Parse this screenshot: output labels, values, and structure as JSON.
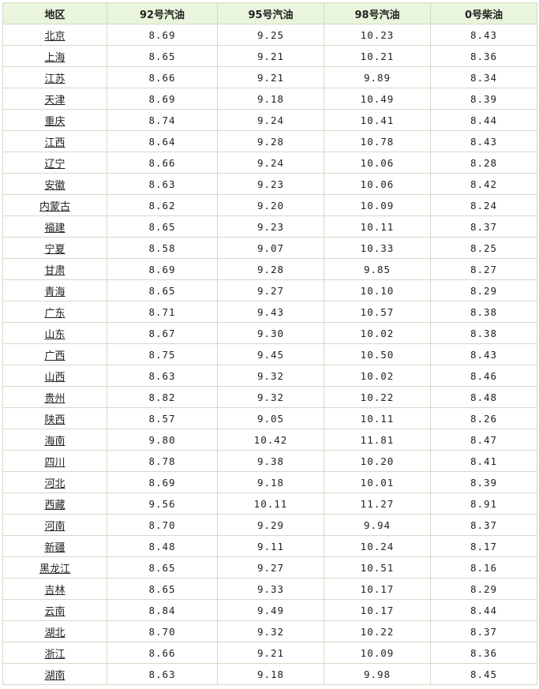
{
  "table": {
    "header": [
      "地区",
      "92号汽油",
      "95号汽油",
      "98号汽油",
      "0号柴油"
    ],
    "rows": [
      [
        "北京",
        "8.69",
        "9.25",
        "10.23",
        "8.43"
      ],
      [
        "上海",
        "8.65",
        "9.21",
        "10.21",
        "8.36"
      ],
      [
        "江苏",
        "8.66",
        "9.21",
        "9.89",
        "8.34"
      ],
      [
        "天津",
        "8.69",
        "9.18",
        "10.49",
        "8.39"
      ],
      [
        "重庆",
        "8.74",
        "9.24",
        "10.41",
        "8.44"
      ],
      [
        "江西",
        "8.64",
        "9.28",
        "10.78",
        "8.43"
      ],
      [
        "辽宁",
        "8.66",
        "9.24",
        "10.06",
        "8.28"
      ],
      [
        "安徽",
        "8.63",
        "9.23",
        "10.06",
        "8.42"
      ],
      [
        "内蒙古",
        "8.62",
        "9.20",
        "10.09",
        "8.24"
      ],
      [
        "福建",
        "8.65",
        "9.23",
        "10.11",
        "8.37"
      ],
      [
        "宁夏",
        "8.58",
        "9.07",
        "10.33",
        "8.25"
      ],
      [
        "甘肃",
        "8.69",
        "9.28",
        "9.85",
        "8.27"
      ],
      [
        "青海",
        "8.65",
        "9.27",
        "10.10",
        "8.29"
      ],
      [
        "广东",
        "8.71",
        "9.43",
        "10.57",
        "8.38"
      ],
      [
        "山东",
        "8.67",
        "9.30",
        "10.02",
        "8.38"
      ],
      [
        "广西",
        "8.75",
        "9.45",
        "10.50",
        "8.43"
      ],
      [
        "山西",
        "8.63",
        "9.32",
        "10.02",
        "8.46"
      ],
      [
        "贵州",
        "8.82",
        "9.32",
        "10.22",
        "8.48"
      ],
      [
        "陕西",
        "8.57",
        "9.05",
        "10.11",
        "8.26"
      ],
      [
        "海南",
        "9.80",
        "10.42",
        "11.81",
        "8.47"
      ],
      [
        "四川",
        "8.78",
        "9.38",
        "10.20",
        "8.41"
      ],
      [
        "河北",
        "8.69",
        "9.18",
        "10.01",
        "8.39"
      ],
      [
        "西藏",
        "9.56",
        "10.11",
        "11.27",
        "8.91"
      ],
      [
        "河南",
        "8.70",
        "9.29",
        "9.94",
        "8.37"
      ],
      [
        "新疆",
        "8.48",
        "9.11",
        "10.24",
        "8.17"
      ],
      [
        "黑龙江",
        "8.65",
        "9.27",
        "10.51",
        "8.16"
      ],
      [
        "吉林",
        "8.65",
        "9.33",
        "10.17",
        "8.29"
      ],
      [
        "云南",
        "8.84",
        "9.49",
        "10.17",
        "8.44"
      ],
      [
        "湖北",
        "8.70",
        "9.32",
        "10.22",
        "8.37"
      ],
      [
        "浙江",
        "8.66",
        "9.21",
        "10.09",
        "8.36"
      ],
      [
        "湖南",
        "8.63",
        "9.18",
        "9.98",
        "8.45"
      ]
    ]
  }
}
